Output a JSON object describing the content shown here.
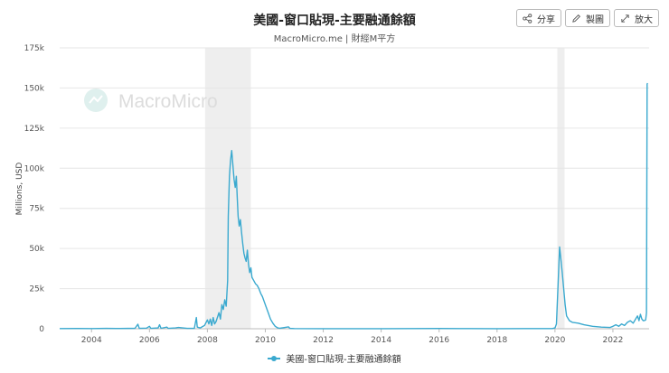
{
  "header": {
    "title": "美國-窗口貼現-主要融通餘額",
    "subtitle": "MacroMicro.me | 財經M平方"
  },
  "toolbar": {
    "share_label": "分享",
    "chart_label": "製圖",
    "expand_label": "放大"
  },
  "watermark": {
    "text": "MacroMicro"
  },
  "colors": {
    "series": "#3aa9cf",
    "recession": "#eeeeee",
    "grid": "#e6e6e6"
  },
  "chart_data": {
    "type": "line",
    "title": "美國-窗口貼現-主要融通餘額",
    "ylabel": "Millions, USD",
    "xlabel": "",
    "xlim": [
      2002.9,
      2023.25
    ],
    "ylim": [
      0,
      175000
    ],
    "yticks": [
      0,
      25000,
      50000,
      75000,
      100000,
      125000,
      150000,
      175000
    ],
    "ytick_labels": [
      "0",
      "25k",
      "50k",
      "75k",
      "100k",
      "125k",
      "150k",
      "175k"
    ],
    "xticks": [
      2004,
      2006,
      2008,
      2010,
      2012,
      2014,
      2016,
      2018,
      2020,
      2022
    ],
    "xtick_labels": [
      "2004",
      "2006",
      "2008",
      "2010",
      "2012",
      "2014",
      "2016",
      "2018",
      "2020",
      "2022"
    ],
    "shaded_periods": [
      [
        2007.92,
        2009.5
      ],
      [
        2020.08,
        2020.33
      ]
    ],
    "legend_position": "bottom-center",
    "grid": true,
    "series": [
      {
        "name": "美國-窗口貼現-主要融通餘額",
        "points": [
          [
            2002.9,
            100
          ],
          [
            2003.5,
            150
          ],
          [
            2004.0,
            120
          ],
          [
            2004.5,
            200
          ],
          [
            2005.0,
            150
          ],
          [
            2005.5,
            300
          ],
          [
            2005.6,
            2800
          ],
          [
            2005.65,
            200
          ],
          [
            2005.9,
            400
          ],
          [
            2006.0,
            1500
          ],
          [
            2006.05,
            200
          ],
          [
            2006.3,
            500
          ],
          [
            2006.35,
            2500
          ],
          [
            2006.4,
            300
          ],
          [
            2006.6,
            1000
          ],
          [
            2006.65,
            200
          ],
          [
            2006.9,
            500
          ],
          [
            2007.0,
            800
          ],
          [
            2007.3,
            200
          ],
          [
            2007.55,
            300
          ],
          [
            2007.62,
            7000
          ],
          [
            2007.65,
            1000
          ],
          [
            2007.75,
            500
          ],
          [
            2007.9,
            2000
          ],
          [
            2008.0,
            5500
          ],
          [
            2008.05,
            3000
          ],
          [
            2008.1,
            6000
          ],
          [
            2008.15,
            2000
          ],
          [
            2008.2,
            7000
          ],
          [
            2008.25,
            3000
          ],
          [
            2008.3,
            4500
          ],
          [
            2008.4,
            10000
          ],
          [
            2008.45,
            6000
          ],
          [
            2008.5,
            15000
          ],
          [
            2008.55,
            12000
          ],
          [
            2008.6,
            18000
          ],
          [
            2008.65,
            14000
          ],
          [
            2008.7,
            30000
          ],
          [
            2008.72,
            70000
          ],
          [
            2008.76,
            95000
          ],
          [
            2008.8,
            105000
          ],
          [
            2008.84,
            111000
          ],
          [
            2008.88,
            102000
          ],
          [
            2008.92,
            93000
          ],
          [
            2008.96,
            88000
          ],
          [
            2009.0,
            95000
          ],
          [
            2009.03,
            82000
          ],
          [
            2009.06,
            70000
          ],
          [
            2009.1,
            64000
          ],
          [
            2009.14,
            68000
          ],
          [
            2009.18,
            60000
          ],
          [
            2009.22,
            53000
          ],
          [
            2009.26,
            47000
          ],
          [
            2009.3,
            44000
          ],
          [
            2009.34,
            42000
          ],
          [
            2009.38,
            49000
          ],
          [
            2009.42,
            40000
          ],
          [
            2009.46,
            35000
          ],
          [
            2009.5,
            38000
          ],
          [
            2009.54,
            32000
          ],
          [
            2009.6,
            30000
          ],
          [
            2009.66,
            28000
          ],
          [
            2009.72,
            27000
          ],
          [
            2009.78,
            25000
          ],
          [
            2009.84,
            22000
          ],
          [
            2009.9,
            20000
          ],
          [
            2009.96,
            17000
          ],
          [
            2010.02,
            14000
          ],
          [
            2010.1,
            10000
          ],
          [
            2010.18,
            6000
          ],
          [
            2010.26,
            3500
          ],
          [
            2010.34,
            1500
          ],
          [
            2010.42,
            600
          ],
          [
            2010.5,
            300
          ],
          [
            2010.8,
            1200
          ],
          [
            2010.85,
            200
          ],
          [
            2011.0,
            100
          ],
          [
            2012.0,
            50
          ],
          [
            2013.0,
            50
          ],
          [
            2014.0,
            80
          ],
          [
            2015.0,
            100
          ],
          [
            2016.0,
            150
          ],
          [
            2017.0,
            100
          ],
          [
            2018.0,
            80
          ],
          [
            2019.0,
            100
          ],
          [
            2019.9,
            120
          ],
          [
            2020.0,
            500
          ],
          [
            2020.05,
            3000
          ],
          [
            2020.12,
            33000
          ],
          [
            2020.16,
            51000
          ],
          [
            2020.2,
            44000
          ],
          [
            2020.25,
            35000
          ],
          [
            2020.3,
            25000
          ],
          [
            2020.35,
            15000
          ],
          [
            2020.4,
            8000
          ],
          [
            2020.5,
            5000
          ],
          [
            2020.6,
            4000
          ],
          [
            2020.8,
            3500
          ],
          [
            2021.0,
            2500
          ],
          [
            2021.3,
            1500
          ],
          [
            2021.6,
            1000
          ],
          [
            2021.9,
            800
          ],
          [
            2022.0,
            1500
          ],
          [
            2022.1,
            2500
          ],
          [
            2022.2,
            1500
          ],
          [
            2022.3,
            3000
          ],
          [
            2022.4,
            2000
          ],
          [
            2022.5,
            4000
          ],
          [
            2022.6,
            5000
          ],
          [
            2022.7,
            3500
          ],
          [
            2022.8,
            6500
          ],
          [
            2022.85,
            8000
          ],
          [
            2022.9,
            5000
          ],
          [
            2022.95,
            9000
          ],
          [
            2023.0,
            6000
          ],
          [
            2023.05,
            5000
          ],
          [
            2023.1,
            5200
          ],
          [
            2023.13,
            5500
          ],
          [
            2023.16,
            10000
          ],
          [
            2023.18,
            152500
          ],
          [
            2023.2,
            153000
          ]
        ]
      }
    ]
  }
}
